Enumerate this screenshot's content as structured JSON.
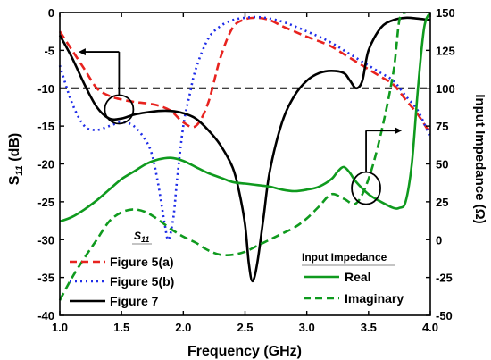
{
  "chart_data": {
    "type": "line",
    "xlabel": "Frequency (GHz)",
    "ylabel_left_main": "S",
    "ylabel_left_sub": "11",
    "ylabel_left_unit": " (dB)",
    "ylabel_right": "Input Impedance (Ω)",
    "xlim": [
      1.0,
      4.0
    ],
    "ylim_left": [
      -40,
      0
    ],
    "ylim_right": [
      -50,
      150
    ],
    "x_ticks": [
      "1.0",
      "1.5",
      "2.0",
      "2.5",
      "3.0",
      "3.5",
      "4.0"
    ],
    "y_left_ticks": [
      "0",
      "-5",
      "-10",
      "-15",
      "-20",
      "-25",
      "-30",
      "-35",
      "-40"
    ],
    "y_right_ticks": [
      "150",
      "125",
      "100",
      "75",
      "50",
      "25",
      "0",
      "-25",
      "-50"
    ],
    "reference_line_db": -10,
    "legend_left_title_main": "S",
    "legend_left_title_sub": "11",
    "legend_right_title": "Input Impedance",
    "series": [
      {
        "name": "Figure 5(a)",
        "axis": "left",
        "color": "#e8231f",
        "dash": "dashed",
        "x": [
          1.0,
          1.1,
          1.2,
          1.3,
          1.4,
          1.5,
          1.6,
          1.7,
          1.8,
          1.9,
          2.0,
          2.1,
          2.2,
          2.3,
          2.4,
          2.5,
          2.6,
          2.7,
          2.8,
          2.9,
          3.0,
          3.1,
          3.2,
          3.3,
          3.4,
          3.5,
          3.6,
          3.7,
          3.8,
          3.9,
          4.0
        ],
        "values": [
          -2.5,
          -5.0,
          -7.5,
          -10.0,
          -11.0,
          -11.5,
          -11.8,
          -12.0,
          -12.3,
          -13.0,
          -14.5,
          -15.0,
          -12.0,
          -6.0,
          -2.0,
          -0.9,
          -0.7,
          -1.0,
          -1.8,
          -2.5,
          -3.2,
          -3.8,
          -4.5,
          -5.5,
          -6.5,
          -7.5,
          -8.5,
          -9.5,
          -11.5,
          -13.5,
          -16.0
        ]
      },
      {
        "name": "Figure 5(b)",
        "axis": "left",
        "color": "#1f2de8",
        "dash": "dotted",
        "x": [
          1.0,
          1.1,
          1.2,
          1.3,
          1.4,
          1.5,
          1.6,
          1.7,
          1.75,
          1.8,
          1.85,
          1.88,
          1.92,
          1.95,
          2.0,
          2.05,
          2.1,
          2.2,
          2.3,
          2.4,
          2.5,
          2.6,
          2.7,
          2.8,
          2.9,
          3.0,
          3.1,
          3.2,
          3.3,
          3.4,
          3.5,
          3.6,
          3.7,
          3.8,
          3.9,
          4.0
        ],
        "values": [
          -7.0,
          -12.0,
          -15.0,
          -15.5,
          -15.0,
          -14.5,
          -15.0,
          -17.0,
          -19.0,
          -23.0,
          -28.0,
          -30.0,
          -27.0,
          -22.0,
          -15.0,
          -11.0,
          -7.5,
          -3.5,
          -1.8,
          -1.0,
          -0.7,
          -0.6,
          -0.8,
          -1.2,
          -1.8,
          -2.5,
          -3.2,
          -4.0,
          -5.0,
          -6.0,
          -7.0,
          -8.0,
          -9.0,
          -11.0,
          -13.0,
          -16.5
        ]
      },
      {
        "name": "Figure 7",
        "axis": "left",
        "color": "#000000",
        "dash": "solid",
        "x": [
          1.0,
          1.1,
          1.2,
          1.3,
          1.4,
          1.5,
          1.6,
          1.7,
          1.8,
          1.9,
          2.0,
          2.1,
          2.2,
          2.3,
          2.4,
          2.45,
          2.5,
          2.53,
          2.56,
          2.6,
          2.65,
          2.7,
          2.8,
          2.9,
          3.0,
          3.1,
          3.2,
          3.3,
          3.35,
          3.4,
          3.45,
          3.5,
          3.6,
          3.7,
          3.8,
          3.9,
          4.0
        ],
        "values": [
          -3.0,
          -6.0,
          -9.5,
          -12.5,
          -14.0,
          -14.0,
          -13.5,
          -13.2,
          -13.0,
          -13.0,
          -13.3,
          -14.0,
          -15.5,
          -17.5,
          -20.5,
          -23.5,
          -28.0,
          -33.0,
          -35.5,
          -33.0,
          -27.0,
          -21.0,
          -14.5,
          -11.0,
          -9.0,
          -8.0,
          -7.7,
          -8.0,
          -9.0,
          -10.0,
          -9.0,
          -5.0,
          -2.0,
          -1.0,
          -0.7,
          -0.8,
          -1.0
        ]
      },
      {
        "name": "Real",
        "axis": "right",
        "color": "#0f9a1e",
        "dash": "solid",
        "x": [
          1.0,
          1.1,
          1.2,
          1.3,
          1.4,
          1.5,
          1.6,
          1.7,
          1.8,
          1.9,
          2.0,
          2.1,
          2.2,
          2.3,
          2.4,
          2.5,
          2.6,
          2.7,
          2.8,
          2.9,
          3.0,
          3.1,
          3.2,
          3.25,
          3.3,
          3.35,
          3.4,
          3.5,
          3.6,
          3.7,
          3.75,
          3.8,
          3.85,
          3.9,
          3.95,
          4.0
        ],
        "values": [
          12,
          15,
          20,
          26,
          33,
          40,
          45,
          50,
          53,
          54,
          52,
          48,
          44,
          41,
          38,
          37,
          36,
          35,
          33,
          32,
          33,
          35,
          40,
          45,
          48,
          44,
          38,
          30,
          25,
          21,
          21,
          25,
          50,
          100,
          140,
          150
        ]
      },
      {
        "name": "Imaginary",
        "axis": "right",
        "color": "#0f9a1e",
        "dash": "dashed",
        "x": [
          1.0,
          1.1,
          1.2,
          1.3,
          1.4,
          1.5,
          1.6,
          1.7,
          1.8,
          1.9,
          2.0,
          2.1,
          2.2,
          2.3,
          2.4,
          2.5,
          2.6,
          2.7,
          2.8,
          2.9,
          3.0,
          3.1,
          3.2,
          3.3,
          3.4,
          3.5,
          3.6,
          3.7,
          3.75,
          3.8
        ],
        "values": [
          -40,
          -25,
          -12,
          0,
          12,
          18,
          20,
          18,
          13,
          7,
          2,
          -2,
          -7,
          -10,
          -10,
          -8,
          -4,
          0,
          4,
          8,
          14,
          22,
          30,
          27,
          24,
          40,
          70,
          110,
          145,
          150
        ]
      }
    ]
  }
}
